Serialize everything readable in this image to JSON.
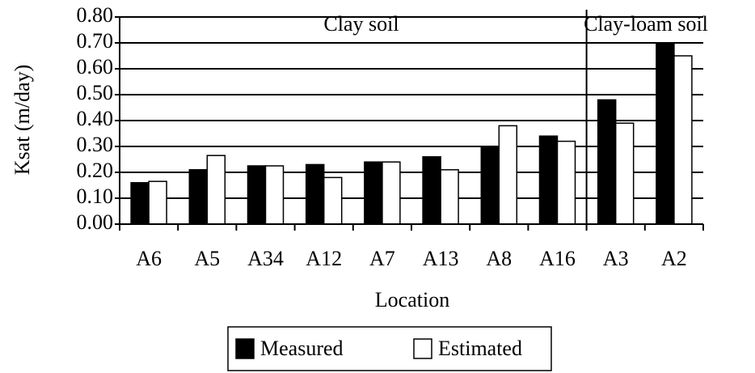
{
  "chart_data": {
    "type": "bar",
    "y_label": "Ksat (m/day)",
    "x_label": "Location",
    "annotations": [
      "Clay soil",
      "Clay-loam soil"
    ],
    "categories": [
      "A6",
      "A5",
      "A34",
      "A12",
      "A7",
      "A13",
      "A8",
      "A16",
      "A3",
      "A2"
    ],
    "series": [
      {
        "name": "Measured",
        "color": "#000000",
        "values": [
          0.16,
          0.21,
          0.225,
          0.23,
          0.24,
          0.26,
          0.3,
          0.34,
          0.48,
          0.7
        ]
      },
      {
        "name": "Estimated",
        "color": "#ffffff",
        "values": [
          0.165,
          0.265,
          0.225,
          0.18,
          0.24,
          0.21,
          0.38,
          0.32,
          0.39,
          0.65
        ]
      }
    ],
    "ylim": [
      0,
      0.8
    ],
    "yticks": [
      {
        "value": 0,
        "label": "0.00"
      },
      {
        "value": 0.1,
        "label": "0.10"
      },
      {
        "value": 0.2,
        "label": "0.20"
      },
      {
        "value": 0.3,
        "label": "0.30"
      },
      {
        "value": 0.4,
        "label": "0.40"
      },
      {
        "value": 0.5,
        "label": "0.50"
      },
      {
        "value": 0.6,
        "label": "0.60"
      },
      {
        "value": 0.7,
        "label": "0.70"
      },
      {
        "value": 0.8,
        "label": "0.80"
      }
    ],
    "grid": true
  }
}
